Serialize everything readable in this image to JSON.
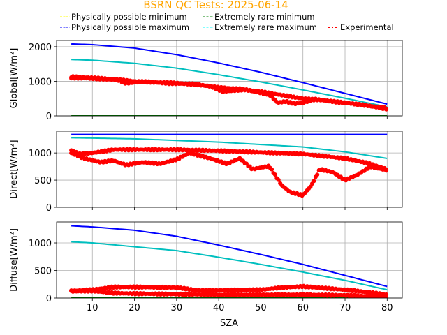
{
  "chart_data": {
    "type": "line",
    "title": "BSRN QC Tests: 2025-06-14",
    "title_color": "#ffa500",
    "xlabel": "SZA",
    "xlim": [
      1.5,
      83.6
    ],
    "xticks": [
      10,
      20,
      30,
      40,
      50,
      60,
      70,
      80
    ],
    "grid": true,
    "legend": {
      "placement": "top-center",
      "entries": [
        {
          "label": "Physically possible minimum",
          "color": "#ffff00",
          "style": "dashed"
        },
        {
          "label": "Extremely rare minimum",
          "color": "#008000",
          "style": "dashed"
        },
        {
          "label": "Physically possible maximum",
          "color": "#0000ff",
          "style": "dashed"
        },
        {
          "label": "Extremely rare maximum",
          "color": "#00ffff",
          "style": "dashed"
        },
        {
          "label": "Experimental",
          "color": "#ff0000",
          "style": "dotted"
        }
      ]
    },
    "panels": [
      {
        "ylabel": "Global[W/m²]",
        "ylim": [
          0,
          2180
        ],
        "yticks": [
          0,
          1000,
          2000
        ],
        "show_xticklabels": false,
        "phys_min": {
          "x": [
            5,
            80
          ],
          "y": [
            -4,
            -4
          ]
        },
        "rare_min": {
          "x": [
            5,
            80
          ],
          "y": [
            0,
            0
          ]
        },
        "phys_max": {
          "x": [
            5,
            10,
            20,
            30,
            40,
            50,
            60,
            70,
            80
          ],
          "y": [
            2080,
            2060,
            1960,
            1770,
            1530,
            1260,
            960,
            650,
            340
          ]
        },
        "rare_max": {
          "x": [
            5,
            10,
            20,
            30,
            40,
            50,
            60,
            70,
            80
          ],
          "y": [
            1630,
            1610,
            1520,
            1380,
            1190,
            980,
            750,
            510,
            260
          ]
        },
        "experimental": [
          {
            "x": [
              5,
              10,
              15,
              20,
              25,
              30,
              35,
              40,
              45,
              50,
              55,
              60,
              65,
              70,
              75,
              80
            ],
            "y": [
              1130,
              1100,
              1060,
              1000,
              970,
              950,
              900,
              820,
              780,
              700,
              600,
              500,
              450,
              380,
              300,
              200
            ]
          },
          {
            "x": [
              5,
              10,
              16,
              18,
              22,
              28,
              34,
              38,
              41,
              46,
              52,
              54,
              56,
              58,
              60,
              63,
              68,
              74,
              80
            ],
            "y": [
              1100,
              1080,
              1040,
              940,
              990,
              940,
              920,
              860,
              700,
              760,
              620,
              380,
              420,
              350,
              380,
              480,
              400,
              320,
              220
            ]
          }
        ]
      },
      {
        "ylabel": "Direct[W/m²]",
        "ylim": [
          0,
          1400
        ],
        "yticks": [
          0,
          500,
          1000
        ],
        "show_xticklabels": false,
        "phys_min": {
          "x": [
            5,
            80
          ],
          "y": [
            -2,
            -2
          ]
        },
        "rare_min": {
          "x": [
            5,
            80
          ],
          "y": [
            0,
            0
          ]
        },
        "phys_max": {
          "x": [
            5,
            80
          ],
          "y": [
            1340,
            1340
          ]
        },
        "rare_max": {
          "x": [
            5,
            20,
            40,
            60,
            70,
            80
          ],
          "y": [
            1280,
            1260,
            1200,
            1110,
            1020,
            900
          ]
        },
        "experimental": [
          {
            "x": [
              5,
              7,
              10,
              15,
              20,
              30,
              40,
              50,
              60,
              70,
              75,
              80
            ],
            "y": [
              1050,
              980,
              1000,
              1060,
              1060,
              1060,
              1040,
              1010,
              980,
              900,
              820,
              700
            ]
          },
          {
            "x": [
              5,
              8,
              12,
              15,
              18,
              22,
              26,
              30,
              33,
              38,
              42,
              45,
              48,
              52,
              55,
              57,
              60,
              62,
              64,
              67,
              70,
              73,
              76,
              80
            ],
            "y": [
              1000,
              900,
              830,
              860,
              780,
              830,
              800,
              880,
              1000,
              900,
              800,
              900,
              700,
              760,
              400,
              280,
              220,
              400,
              700,
              650,
              500,
              600,
              750,
              680
            ]
          }
        ]
      },
      {
        "ylabel": "Diffuse[W/m²]",
        "ylim": [
          0,
          1380
        ],
        "yticks": [
          0,
          500,
          1000
        ],
        "show_xticklabels": true,
        "phys_min": {
          "x": [
            5,
            80
          ],
          "y": [
            -2,
            -2
          ]
        },
        "rare_min": {
          "x": [
            5,
            80
          ],
          "y": [
            0,
            0
          ]
        },
        "phys_max": {
          "x": [
            5,
            10,
            20,
            30,
            40,
            50,
            60,
            70,
            80
          ],
          "y": [
            1310,
            1290,
            1230,
            1120,
            960,
            790,
            610,
            410,
            210
          ]
        },
        "rare_max": {
          "x": [
            5,
            10,
            20,
            30,
            40,
            50,
            60,
            70,
            80
          ],
          "y": [
            1020,
            1000,
            930,
            860,
            740,
            610,
            470,
            320,
            150
          ]
        },
        "experimental": [
          {
            "x": [
              5,
              10,
              15,
              20,
              30,
              35,
              40,
              50,
              55,
              60,
              65,
              70,
              75,
              80
            ],
            "y": [
              130,
              150,
              200,
              200,
              190,
              140,
              140,
              150,
              190,
              210,
              180,
              150,
              110,
              60
            ]
          },
          {
            "x": [
              5,
              10,
              15,
              20,
              30,
              40,
              50,
              60,
              70,
              80
            ],
            "y": [
              120,
              130,
              90,
              80,
              70,
              60,
              60,
              60,
              50,
              20
            ]
          }
        ]
      }
    ]
  }
}
